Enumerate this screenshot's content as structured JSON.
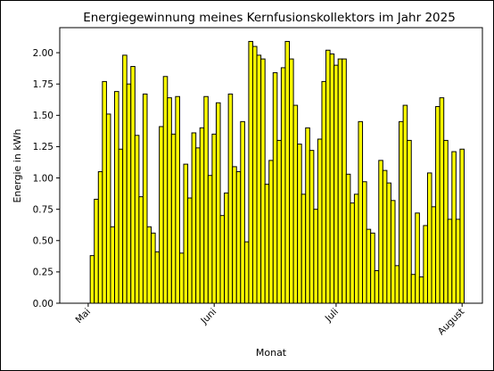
{
  "chart_data": {
    "type": "bar",
    "title": "Energiegewinnung meines Kernfusionskollektors im Jahr 2025",
    "xlabel": "Monat",
    "ylabel": "Energie in kWh",
    "bar_color": "#ffff00",
    "edge_color": "#000000",
    "ylim": [
      0,
      2.2
    ],
    "yticks": [
      "0.00",
      "0.25",
      "0.50",
      "0.75",
      "1.00",
      "1.25",
      "1.50",
      "1.75",
      "2.00"
    ],
    "xlim": [
      "2025-04-24",
      "2025-08-06"
    ],
    "xticks": [
      {
        "label": "Mai",
        "date": "2025-05-01"
      },
      {
        "label": "Juni",
        "date": "2025-06-01"
      },
      {
        "label": "Juli",
        "date": "2025-07-01"
      },
      {
        "label": "August",
        "date": "2025-08-01"
      }
    ],
    "dates": [
      "2025-05-02",
      "2025-05-03",
      "2025-05-04",
      "2025-05-05",
      "2025-05-06",
      "2025-05-07",
      "2025-05-08",
      "2025-05-09",
      "2025-05-10",
      "2025-05-11",
      "2025-05-12",
      "2025-05-13",
      "2025-05-14",
      "2025-05-15",
      "2025-05-16",
      "2025-05-17",
      "2025-05-18",
      "2025-05-19",
      "2025-05-20",
      "2025-05-21",
      "2025-05-22",
      "2025-05-23",
      "2025-05-24",
      "2025-05-25",
      "2025-05-26",
      "2025-05-27",
      "2025-05-28",
      "2025-05-29",
      "2025-05-30",
      "2025-05-31",
      "2025-06-01",
      "2025-06-02",
      "2025-06-03",
      "2025-06-04",
      "2025-06-05",
      "2025-06-06",
      "2025-06-07",
      "2025-06-08",
      "2025-06-09",
      "2025-06-10",
      "2025-06-11",
      "2025-06-12",
      "2025-06-13",
      "2025-06-14",
      "2025-06-15",
      "2025-06-16",
      "2025-06-17",
      "2025-06-18",
      "2025-06-19",
      "2025-06-20",
      "2025-06-21",
      "2025-06-22",
      "2025-06-23",
      "2025-06-24",
      "2025-06-25",
      "2025-06-26",
      "2025-06-27",
      "2025-06-28",
      "2025-06-29",
      "2025-06-30",
      "2025-07-01",
      "2025-07-02",
      "2025-07-03",
      "2025-07-04",
      "2025-07-05",
      "2025-07-06",
      "2025-07-07",
      "2025-07-08",
      "2025-07-09",
      "2025-07-10",
      "2025-07-11",
      "2025-07-12",
      "2025-07-13",
      "2025-07-14",
      "2025-07-15",
      "2025-07-16",
      "2025-07-17",
      "2025-07-18",
      "2025-07-19",
      "2025-07-20",
      "2025-07-21",
      "2025-07-22",
      "2025-07-23",
      "2025-07-24",
      "2025-07-25",
      "2025-07-26",
      "2025-07-27",
      "2025-07-28",
      "2025-07-29",
      "2025-07-30",
      "2025-07-31",
      "2025-08-01",
      "2025-08-02"
    ],
    "values": [
      0.38,
      0.83,
      1.05,
      1.77,
      1.51,
      0.61,
      1.69,
      1.23,
      1.98,
      1.75,
      1.89,
      1.34,
      0.85,
      1.67,
      0.61,
      0.56,
      0.41,
      1.41,
      1.81,
      1.64,
      1.35,
      1.65,
      0.4,
      1.11,
      0.84,
      1.36,
      1.24,
      1.4,
      1.65,
      1.02,
      1.35,
      1.6,
      0.7,
      0.88,
      1.67,
      1.09,
      1.05,
      1.45,
      0.49,
      2.09,
      2.05,
      1.98,
      1.95,
      0.95,
      1.14,
      1.84,
      1.3,
      1.88,
      2.09,
      1.95,
      1.58,
      1.27,
      0.87,
      1.4,
      1.22,
      0.75,
      1.31,
      1.77,
      2.02,
      1.99,
      1.9,
      1.95,
      1.95,
      1.03,
      0.8,
      0.87,
      1.45,
      0.97,
      0.59,
      0.56,
      0.26,
      1.14,
      1.06,
      0.96,
      0.82,
      0.3,
      1.45,
      1.58,
      1.3,
      0.23,
      0.72,
      0.21,
      0.62,
      1.04,
      0.77,
      1.57,
      1.64,
      1.3,
      0.67,
      1.21,
      0.67,
      1.23,
      0.0
    ]
  }
}
